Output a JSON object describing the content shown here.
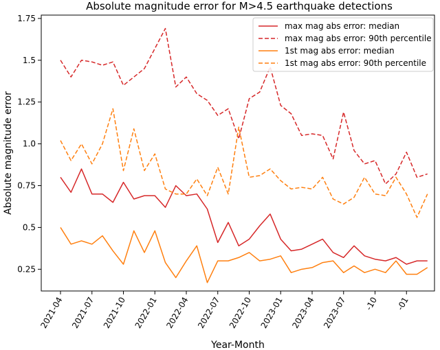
{
  "chart_data": {
    "type": "line",
    "title": "Absolute magnitude error for M>4.5 earthquake detections",
    "xlabel": "Year-Month",
    "ylabel": "Absolute magnitude error",
    "x": [
      "2021-04",
      "2021-05",
      "2021-06",
      "2021-07",
      "2021-08",
      "2021-09",
      "2021-10",
      "2021-11",
      "2021-12",
      "2022-01",
      "2022-02",
      "2022-03",
      "2022-04",
      "2022-05",
      "2022-06",
      "2022-07",
      "2022-08",
      "2022-09",
      "2022-10",
      "2022-11",
      "2022-12",
      "2023-01",
      "2023-02",
      "2023-03",
      "2023-04",
      "2023-05",
      "2023-06",
      "2023-07",
      "2023-08",
      "2023-09",
      "2023-10",
      "2023-11",
      "2023-12",
      "2024-01",
      "2024-02",
      "2024-03"
    ],
    "x_tick_labels": [
      "2021-04",
      "2021-07",
      "2021-10",
      "2022-01",
      "2022-04",
      "2022-07",
      "2022-10",
      "2023-01",
      "2023-04",
      "2023-07",
      "-10",
      "-01"
    ],
    "ylim": [
      0.12,
      1.77
    ],
    "y_ticks": [
      0.25,
      0.5,
      0.75,
      1.0,
      1.25,
      1.5,
      1.75
    ],
    "y_tick_labels": [
      "0.25",
      "0.5",
      "0.75",
      "1.0",
      "1.25",
      "1.5",
      "1.75"
    ],
    "grid": false,
    "legend_position": "top-right",
    "series": [
      {
        "name": "max mag abs error: median",
        "color": "#d62728",
        "style": "solid",
        "values": [
          0.8,
          0.71,
          0.85,
          0.7,
          0.7,
          0.65,
          0.77,
          0.67,
          0.69,
          0.69,
          0.62,
          0.75,
          0.69,
          0.7,
          0.61,
          0.41,
          0.53,
          0.39,
          0.43,
          0.51,
          0.58,
          0.43,
          0.36,
          0.37,
          0.4,
          0.43,
          0.35,
          0.32,
          0.39,
          0.33,
          0.31,
          0.3,
          0.32,
          0.28,
          0.3,
          0.3
        ]
      },
      {
        "name": "max mag abs error: 90th percentile",
        "color": "#d62728",
        "style": "dashed",
        "values": [
          1.5,
          1.4,
          1.5,
          1.49,
          1.47,
          1.49,
          1.35,
          1.4,
          1.45,
          1.57,
          1.69,
          1.34,
          1.4,
          1.3,
          1.26,
          1.17,
          1.21,
          1.03,
          1.27,
          1.31,
          1.46,
          1.23,
          1.18,
          1.05,
          1.06,
          1.05,
          0.91,
          1.19,
          0.96,
          0.88,
          0.9,
          0.76,
          0.82,
          0.95,
          0.8,
          0.82
        ]
      },
      {
        "name": "1st mag abs error: median",
        "color": "#ff7f0e",
        "style": "solid",
        "values": [
          0.5,
          0.4,
          0.42,
          0.4,
          0.45,
          0.36,
          0.28,
          0.48,
          0.35,
          0.48,
          0.29,
          0.2,
          0.3,
          0.39,
          0.17,
          0.3,
          0.3,
          0.32,
          0.35,
          0.3,
          0.31,
          0.33,
          0.23,
          0.25,
          0.26,
          0.29,
          0.3,
          0.23,
          0.27,
          0.23,
          0.25,
          0.23,
          0.3,
          0.22,
          0.22,
          0.26
        ]
      },
      {
        "name": "1st mag abs error: 90th percentile",
        "color": "#ff7f0e",
        "style": "dashed",
        "values": [
          1.02,
          0.9,
          1.0,
          0.88,
          1.0,
          1.21,
          0.84,
          1.09,
          0.84,
          0.94,
          0.73,
          0.7,
          0.7,
          0.79,
          0.69,
          0.86,
          0.7,
          1.1,
          0.8,
          0.81,
          0.85,
          0.78,
          0.73,
          0.74,
          0.73,
          0.8,
          0.67,
          0.64,
          0.68,
          0.8,
          0.7,
          0.69,
          0.8,
          0.7,
          0.56,
          0.7
        ]
      }
    ]
  }
}
